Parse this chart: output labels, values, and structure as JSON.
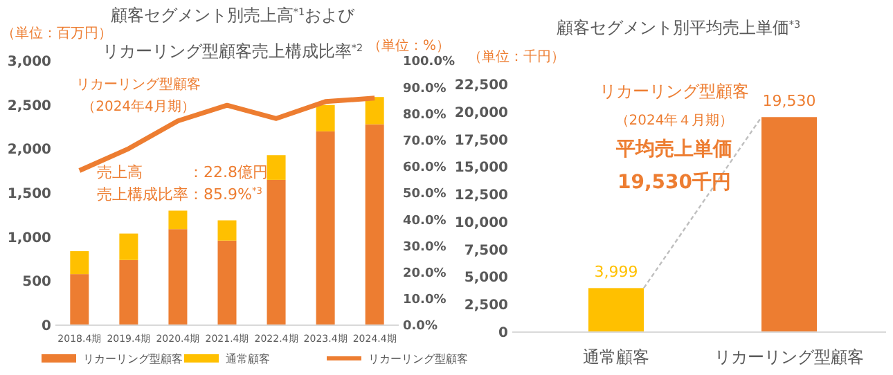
{
  "chart_data": [
    {
      "type": "bar",
      "stacked": true,
      "title": "顧客セグメント別売上高$^{*1}$および",
      "subtitle": "リカーリング型顧客売上構成比率$^{*2}$",
      "ylabel": "（単位：百万円）",
      "y2label": "（単位：%）",
      "categories": [
        "2018.4期",
        "2019.4期",
        "2020.4期",
        "2021.4期",
        "2022.4期",
        "2023.4期",
        "2024.4期"
      ],
      "series": [
        {
          "name": "リカーリング型顧客",
          "color": "#ed7d31",
          "values": [
            580,
            740,
            1090,
            960,
            1650,
            2200,
            2280
          ]
        },
        {
          "name": "通常顧客",
          "color": "#ffc000",
          "values": [
            260,
            300,
            210,
            230,
            280,
            300,
            310
          ]
        },
        {
          "name": "リカーリング型顧客",
          "type": "line",
          "axis": "y2",
          "color": "#ed7d31",
          "values": [
            58.5,
            66.8,
            77.3,
            83.2,
            78.2,
            84.6,
            85.9
          ]
        }
      ],
      "ylim": [
        0,
        3000
      ],
      "yticks": [
        {
          "value": 0,
          "label": "0"
        },
        {
          "value": 500,
          "label": "500"
        },
        {
          "value": 1000,
          "label": "1,000"
        },
        {
          "value": 1500,
          "label": "1,500"
        },
        {
          "value": 2000,
          "label": "2,000"
        },
        {
          "value": 2500,
          "label": "2,500"
        },
        {
          "value": 3000,
          "label": "3,000"
        }
      ],
      "y2lim": [
        0,
        100
      ],
      "y2ticks": [
        {
          "value": 0,
          "label": "0.0%"
        },
        {
          "value": 10,
          "label": "10.0%"
        },
        {
          "value": 20,
          "label": "20.0%"
        },
        {
          "value": 30,
          "label": "30.0%"
        },
        {
          "value": 40,
          "label": "40.0%"
        },
        {
          "value": 50,
          "label": "50.0%"
        },
        {
          "value": 60,
          "label": "60.0%"
        },
        {
          "value": 70,
          "label": "70.0%"
        },
        {
          "value": 80,
          "label": "80.0%"
        },
        {
          "value": 90,
          "label": "90.0%"
        },
        {
          "value": 100,
          "label": "100.0%"
        }
      ],
      "legend": "bottom",
      "grid": false,
      "marker": "none",
      "annotations": [
        "リカーリング型顧客",
        "（2024年4月期）",
        "売上高　　　：22.8億円",
        "売上構成比率：85.9%$^{*3}$"
      ]
    },
    {
      "type": "bar",
      "title": "顧客セグメント別平均売上単価$^{*3}$",
      "ylabel": "（単位：千円）",
      "categories": [
        "通常顧客",
        "リカーリング型顧客"
      ],
      "values": [
        3999,
        19530
      ],
      "value_labels": [
        "3,999",
        "19,530"
      ],
      "colors": [
        "#ffc000",
        "#ed7d31"
      ],
      "ylim": [
        0,
        22500
      ],
      "yticks": [
        {
          "value": 0,
          "label": "0"
        },
        {
          "value": 2500,
          "label": "2,500"
        },
        {
          "value": 5000,
          "label": "5,000"
        },
        {
          "value": 7500,
          "label": "7,500"
        },
        {
          "value": 10000,
          "label": "10,000"
        },
        {
          "value": 12500,
          "label": "12,500"
        },
        {
          "value": 15000,
          "label": "15,000"
        },
        {
          "value": 17500,
          "label": "17,500"
        },
        {
          "value": 20000,
          "label": "20,000"
        },
        {
          "value": 22500,
          "label": "22,500"
        }
      ],
      "grid": false,
      "annotations": [
        "リカーリング型顧客",
        "（2024年４月期）",
        "平均売上単価",
        "19,530千円"
      ]
    }
  ]
}
